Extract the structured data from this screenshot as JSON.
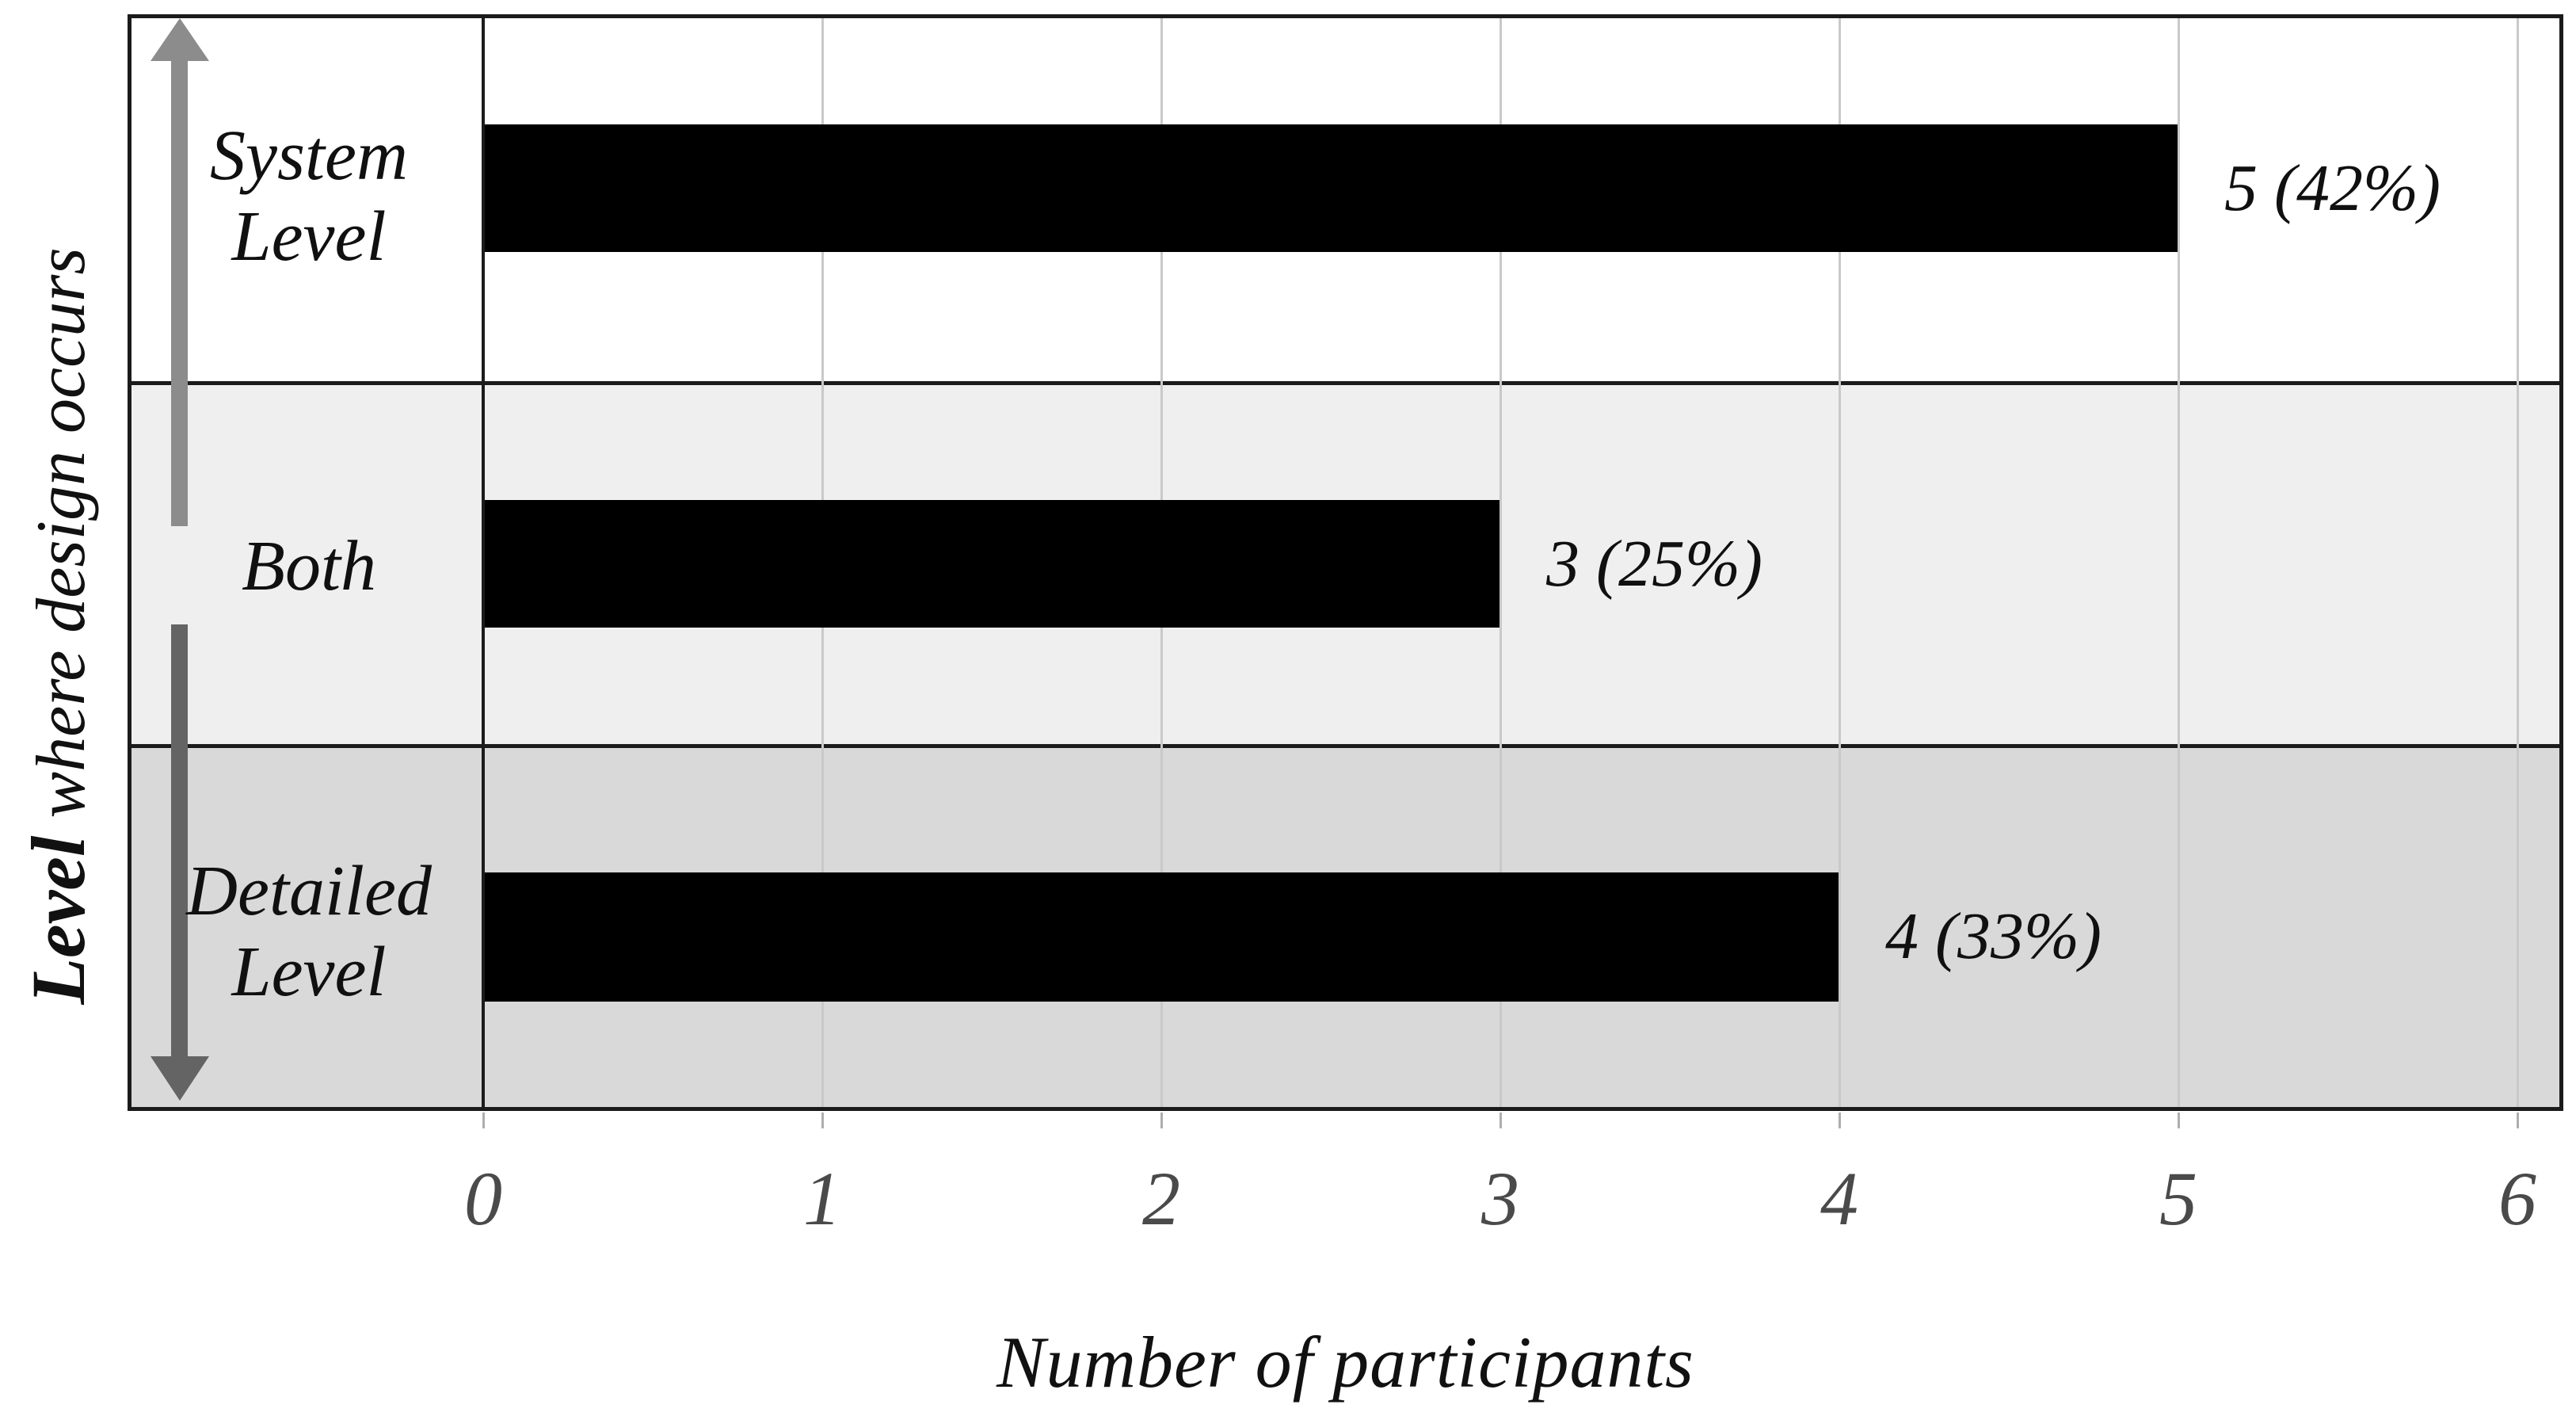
{
  "chart_data": {
    "type": "bar",
    "orientation": "horizontal",
    "title": "",
    "categories": [
      "System Level",
      "Both",
      "Detailed Level"
    ],
    "categories_lines": [
      [
        "System",
        "Level"
      ],
      [
        "Both"
      ],
      [
        "Detailed",
        "Level"
      ]
    ],
    "values": [
      5,
      3,
      4
    ],
    "percentages": [
      42,
      25,
      33
    ],
    "data_labels": [
      "5 (42%)",
      "3 (25%)",
      "4 (33%)"
    ],
    "xlabel": "Number of participants",
    "ylabel": "Level where design occurs",
    "ylabel_bold_word": "Level",
    "ylabel_rest": " where design occurs",
    "xlim": [
      0,
      6
    ],
    "xticks": [
      "0",
      "1",
      "2",
      "3",
      "4",
      "5",
      "6"
    ],
    "grid": "vertical gridlines at each integer tick",
    "legend": "none",
    "bar_color": "#000000",
    "row_backgrounds": [
      "#ffffff",
      "#efefef",
      "#d9d9d9"
    ],
    "gridline_color": "#c9c9c9",
    "frame_color": "#1b1b1b",
    "up_arrow_color": "#8c8c8c",
    "down_arrow_color": "#646464",
    "annotations": "vertical double-headed gray arrow along category column indicating level axis direction"
  }
}
